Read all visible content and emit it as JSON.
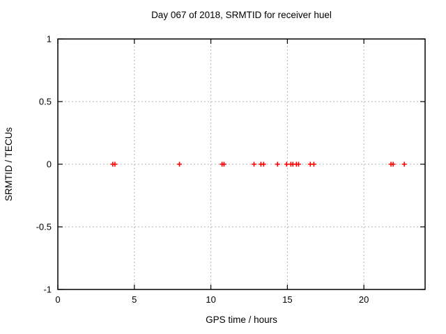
{
  "chart_data": {
    "type": "scatter",
    "title": "Day 067 of 2018, SRMTID for receiver huel",
    "xlabel": "GPS time / hours",
    "ylabel": "SRMTID / TECUs",
    "xlim": [
      0,
      24
    ],
    "ylim": [
      -1,
      1
    ],
    "xticks": [
      0,
      5,
      10,
      15,
      20
    ],
    "yticks": [
      -1,
      -0.5,
      0,
      0.5,
      1
    ],
    "grid": true,
    "legend_position": "none",
    "marker": {
      "shape": "plus",
      "color": "#ff0000",
      "size": 7,
      "stroke_width": 1.6
    },
    "frame_color": "#000000",
    "grid_color": "#b3b3b3",
    "series": [
      {
        "name": "SRMTID",
        "x": [
          3.59,
          3.73,
          7.95,
          10.73,
          10.86,
          12.82,
          13.27,
          13.45,
          14.36,
          14.95,
          15.23,
          15.36,
          15.59,
          15.73,
          16.5,
          16.73,
          21.77,
          21.91,
          22.64
        ],
        "y": [
          0,
          0,
          0,
          0,
          0,
          0,
          0,
          0,
          0,
          0,
          0,
          0,
          0,
          0,
          0,
          0,
          0,
          0,
          0
        ]
      }
    ]
  }
}
